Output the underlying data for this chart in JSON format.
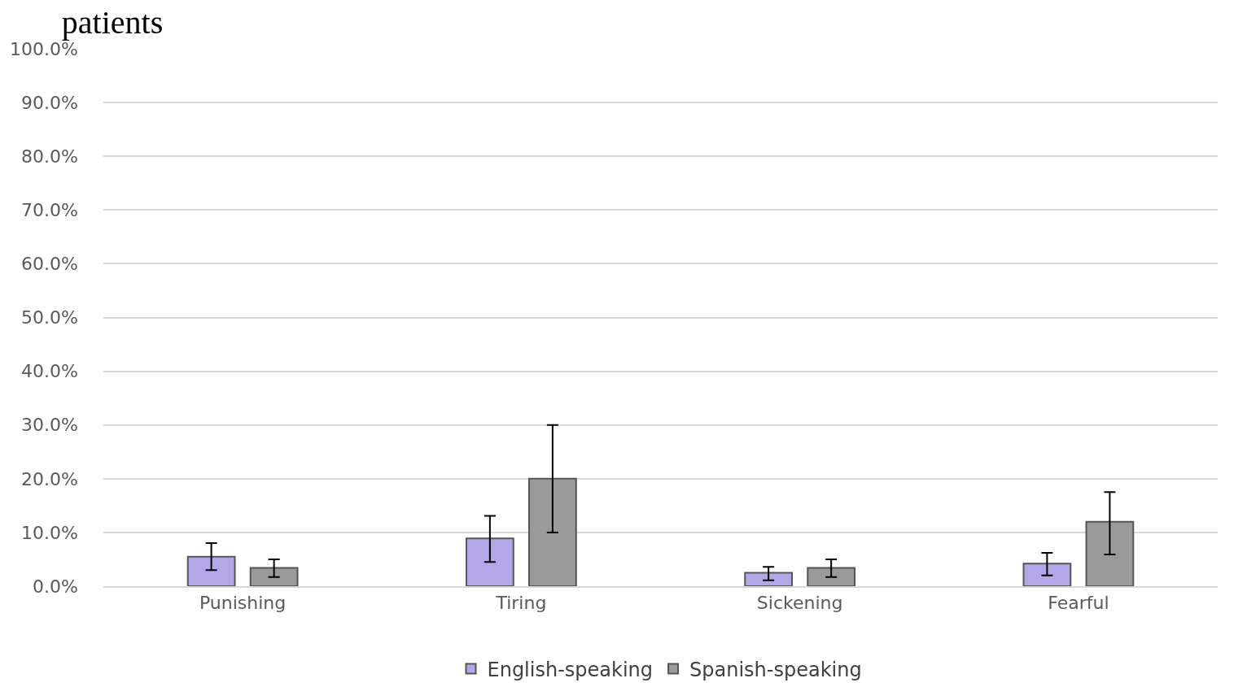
{
  "chart_data": {
    "type": "bar",
    "title": "patients",
    "categories": [
      "Punishing",
      "Tiring",
      "Sickening",
      "Fearful"
    ],
    "series": [
      {
        "name": "English-speaking",
        "color": "#b4a7e8",
        "values": [
          5.5,
          8.9,
          2.5,
          4.2
        ],
        "errors": [
          [
            3.0,
            8.0
          ],
          [
            4.5,
            13.1
          ],
          [
            1.1,
            3.6
          ],
          [
            2.0,
            6.2
          ]
        ]
      },
      {
        "name": "Spanish-speaking",
        "color": "#9a9a9a",
        "values": [
          3.4,
          20.0,
          3.4,
          12.0
        ],
        "errors": [
          [
            1.7,
            5.0
          ],
          [
            10.0,
            30.0
          ],
          [
            1.7,
            5.0
          ],
          [
            5.9,
            17.5
          ]
        ]
      }
    ],
    "ylim": [
      0,
      100
    ],
    "yticks": [
      {
        "value": 0,
        "label": "0.0%"
      },
      {
        "value": 10,
        "label": "10.0%"
      },
      {
        "value": 20,
        "label": "20.0%"
      },
      {
        "value": 30,
        "label": "30.0%"
      },
      {
        "value": 40,
        "label": "40.0%"
      },
      {
        "value": 50,
        "label": "50.0%"
      },
      {
        "value": 60,
        "label": "60.0%"
      },
      {
        "value": 70,
        "label": "70.0%"
      },
      {
        "value": 80,
        "label": "80.0%"
      },
      {
        "value": 90,
        "label": "90.0%"
      },
      {
        "value": 100,
        "label": "100.0%"
      }
    ],
    "grid": "y",
    "legend": "bottom"
  }
}
